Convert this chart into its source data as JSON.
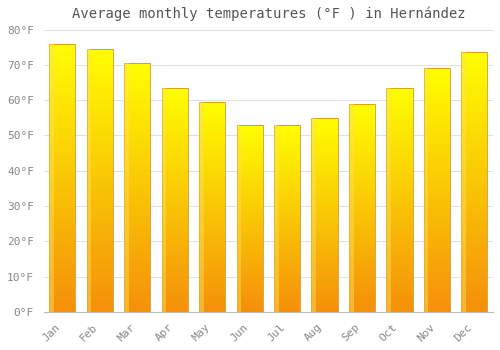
{
  "title": "Average monthly temperatures (°F ) in Hernández",
  "months": [
    "Jan",
    "Feb",
    "Mar",
    "Apr",
    "May",
    "Jun",
    "Jul",
    "Aug",
    "Sep",
    "Oct",
    "Nov",
    "Dec"
  ],
  "values": [
    76.0,
    74.5,
    70.5,
    63.5,
    59.5,
    53.0,
    53.0,
    55.0,
    59.0,
    63.5,
    69.0,
    73.5
  ],
  "ylim": [
    0,
    80
  ],
  "yticks": [
    0,
    10,
    20,
    30,
    40,
    50,
    60,
    70,
    80
  ],
  "ytick_labels": [
    "0°F",
    "10°F",
    "20°F",
    "30°F",
    "40°F",
    "50°F",
    "60°F",
    "70°F",
    "80°F"
  ],
  "bar_color_bright": "#FFCC00",
  "bar_color_mid": "#FFB300",
  "bar_color_dark": "#F5900A",
  "bar_edge_color": "#CC8000",
  "background_color": "#ffffff",
  "grid_color": "#e0e0e0",
  "title_fontsize": 10,
  "tick_fontsize": 8,
  "title_color": "#555555",
  "tick_color": "#888888",
  "bar_width": 0.7
}
